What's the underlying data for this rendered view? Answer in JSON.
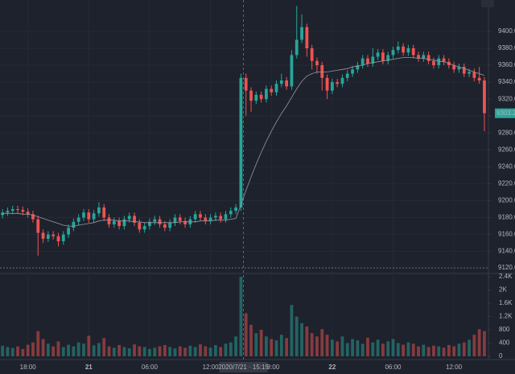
{
  "chart_data": {
    "type": "candlestick",
    "categories": [
      null,
      null,
      null,
      null,
      null,
      "18:00",
      null,
      null,
      null,
      null,
      null,
      null,
      null,
      null,
      null,
      null,
      null,
      "21",
      null,
      null,
      null,
      null,
      null,
      null,
      null,
      null,
      null,
      null,
      null,
      "06:00",
      null,
      null,
      null,
      null,
      null,
      null,
      null,
      null,
      null,
      null,
      null,
      "12:00",
      null,
      null,
      null,
      null,
      null,
      null,
      null,
      null,
      null,
      null,
      null,
      "18:00",
      null,
      null,
      null,
      null,
      null,
      null,
      null,
      null,
      null,
      null,
      null,
      "22",
      null,
      null,
      null,
      null,
      null,
      null,
      null,
      null,
      null,
      null,
      null,
      "06:00",
      null,
      null,
      null,
      null,
      null,
      null,
      null,
      null,
      null,
      null,
      null,
      "12:00",
      null,
      null,
      null,
      null,
      null,
      null
    ],
    "open": [
      9183,
      9186,
      9188,
      9190,
      9189,
      9187,
      9184,
      9178,
      9162,
      9155,
      9160,
      9158,
      9152,
      9160,
      9168,
      9175,
      9180,
      9186,
      9178,
      9185,
      9192,
      9180,
      9172,
      9176,
      9170,
      9178,
      9182,
      9174,
      9166,
      9170,
      9175,
      9178,
      9172,
      9168,
      9174,
      9180,
      9176,
      9172,
      9178,
      9184,
      9180,
      9176,
      9180,
      9182,
      9178,
      9184,
      9188,
      9192,
      9345,
      9330,
      9318,
      9325,
      9320,
      9332,
      9328,
      9338,
      9342,
      9335,
      9372,
      9390,
      9405,
      9380,
      9365,
      9360,
      9345,
      9330,
      9340,
      9338,
      9345,
      9350,
      9355,
      9360,
      9368,
      9362,
      9370,
      9375,
      9365,
      9372,
      9378,
      9382,
      9375,
      9380,
      9372,
      9368,
      9372,
      9365,
      9360,
      9368,
      9364,
      9360,
      9355,
      9358,
      9350,
      9352,
      9345,
      9342
    ],
    "high": [
      9190,
      9192,
      9194,
      9194,
      9193,
      9191,
      9188,
      9182,
      9166,
      9164,
      9164,
      9162,
      9164,
      9172,
      9179,
      9184,
      9190,
      9190,
      9189,
      9198,
      9196,
      9184,
      9180,
      9180,
      9182,
      9186,
      9186,
      9178,
      9174,
      9179,
      9182,
      9182,
      9176,
      9178,
      9184,
      9184,
      9180,
      9182,
      9188,
      9188,
      9184,
      9184,
      9186,
      9186,
      9188,
      9192,
      9196,
      9350,
      9350,
      9334,
      9329,
      9329,
      9336,
      9336,
      9342,
      9350,
      9346,
      9378,
      9430,
      9420,
      9409,
      9384,
      9369,
      9364,
      9349,
      9344,
      9344,
      9349,
      9354,
      9359,
      9364,
      9372,
      9372,
      9380,
      9379,
      9379,
      9376,
      9382,
      9388,
      9386,
      9384,
      9384,
      9376,
      9376,
      9376,
      9369,
      9372,
      9372,
      9368,
      9364,
      9362,
      9362,
      9356,
      9356,
      9358,
      9346
    ],
    "low": [
      9179,
      9182,
      9184,
      9185,
      9183,
      9180,
      9174,
      9135,
      9150,
      9151,
      9154,
      9146,
      9148,
      9156,
      9164,
      9171,
      9176,
      9174,
      9174,
      9181,
      9176,
      9168,
      9168,
      9166,
      9166,
      9174,
      9170,
      9162,
      9162,
      9166,
      9171,
      9168,
      9164,
      9164,
      9170,
      9172,
      9168,
      9168,
      9174,
      9176,
      9172,
      9172,
      9176,
      9174,
      9174,
      9180,
      9184,
      9188,
      9300,
      9305,
      9314,
      9316,
      9316,
      9324,
      9324,
      9334,
      9331,
      9331,
      9368,
      9386,
      9370,
      9355,
      9350,
      9330,
      9320,
      9326,
      9334,
      9334,
      9341,
      9346,
      9351,
      9356,
      9358,
      9358,
      9366,
      9361,
      9361,
      9368,
      9374,
      9371,
      9371,
      9368,
      9364,
      9364,
      9361,
      9356,
      9356,
      9360,
      9356,
      9351,
      9351,
      9346,
      9346,
      9341,
      9338,
      9282
    ],
    "close": [
      9186,
      9188,
      9190,
      9189,
      9187,
      9184,
      9178,
      9162,
      9155,
      9160,
      9158,
      9152,
      9160,
      9168,
      9175,
      9180,
      9186,
      9178,
      9185,
      9192,
      9180,
      9172,
      9176,
      9170,
      9178,
      9182,
      9174,
      9166,
      9170,
      9175,
      9178,
      9172,
      9168,
      9174,
      9180,
      9176,
      9172,
      9178,
      9184,
      9180,
      9176,
      9180,
      9182,
      9178,
      9184,
      9188,
      9192,
      9345,
      9330,
      9318,
      9325,
      9320,
      9332,
      9328,
      9338,
      9342,
      9335,
      9372,
      9390,
      9405,
      9380,
      9365,
      9360,
      9345,
      9330,
      9340,
      9338,
      9345,
      9350,
      9355,
      9360,
      9368,
      9362,
      9370,
      9375,
      9365,
      9372,
      9378,
      9382,
      9375,
      9380,
      9372,
      9368,
      9372,
      9365,
      9360,
      9368,
      9364,
      9360,
      9355,
      9358,
      9350,
      9352,
      9345,
      9342,
      9303.24
    ],
    "volume": [
      320,
      280,
      250,
      300,
      220,
      350,
      420,
      760,
      520,
      380,
      300,
      450,
      280,
      350,
      300,
      420,
      380,
      620,
      330,
      400,
      550,
      300,
      260,
      340,
      280,
      240,
      360,
      300,
      280,
      220,
      260,
      300,
      340,
      280,
      240,
      300,
      260,
      320,
      280,
      360,
      300,
      260,
      340,
      280,
      380,
      420,
      600,
      2400,
      1300,
      950,
      700,
      800,
      600,
      520,
      480,
      650,
      550,
      1550,
      1200,
      1000,
      900,
      700,
      600,
      820,
      650,
      500,
      450,
      600,
      400,
      520,
      480,
      380,
      560,
      420,
      500,
      380,
      450,
      520,
      400,
      350,
      420,
      380,
      300,
      350,
      280,
      320,
      300,
      260,
      340,
      300,
      380,
      420,
      500,
      650,
      820,
      760
    ],
    "ma": {
      "color": "#9598a1",
      "values": [
        9185,
        9185,
        9185,
        9185,
        9184,
        9184,
        9183,
        9181,
        9179,
        9177,
        9175,
        9173,
        9171,
        9170,
        9170,
        9171,
        9172,
        9173,
        9174,
        9176,
        9177,
        9177,
        9177,
        9176,
        9176,
        9176,
        9175,
        9175,
        9174,
        9174,
        9174,
        9174,
        9174,
        9174,
        9174,
        9175,
        9175,
        9175,
        9175,
        9176,
        9176,
        9176,
        9177,
        9177,
        9177,
        9178,
        9179,
        9195,
        9212,
        9228,
        9243,
        9257,
        9270,
        9282,
        9293,
        9303,
        9312,
        9322,
        9332,
        9341,
        9347,
        9350,
        9352,
        9352,
        9352,
        9353,
        9354,
        9355,
        9356,
        9358,
        9359,
        9360,
        9362,
        9363,
        9364,
        9365,
        9366,
        9367,
        9368,
        9369,
        9369,
        9369,
        9368,
        9368,
        9367,
        9366,
        9365,
        9364,
        9362,
        9360,
        9358,
        9356,
        9354,
        9352,
        9350,
        9348
      ]
    },
    "up_color": "#26a69a",
    "down_color": "#ef5350",
    "ylim": [
      9114,
      9437
    ],
    "yticks": [
      {
        "value": 9140,
        "label": "9140.00"
      },
      {
        "value": 9160,
        "label": "9160.00"
      },
      {
        "value": 9180,
        "label": "9180.00"
      },
      {
        "value": 9200,
        "label": "9200.00"
      },
      {
        "value": 9220,
        "label": "9220.00"
      },
      {
        "value": 9240,
        "label": "9240.00"
      },
      {
        "value": 9260,
        "label": "9260.00"
      },
      {
        "value": 9280,
        "label": "9280.00"
      },
      {
        "value": 9300,
        "label": "9300.00"
      },
      {
        "value": 9320,
        "label": "9320.00"
      },
      {
        "value": 9340,
        "label": "9340.00"
      },
      {
        "value": 9360,
        "label": "9360.00"
      },
      {
        "value": 9380,
        "label": "9380.00"
      },
      {
        "value": 9400,
        "label": "9400.00"
      }
    ],
    "volume_ylim": [
      0,
      2450
    ],
    "volume_yticks": [
      0,
      400,
      800,
      {
        "value": 1200,
        "label": "1.2K"
      },
      {
        "value": 1600,
        "label": "1.6K"
      },
      {
        "value": 2000,
        "label": "2K"
      },
      {
        "value": 2400,
        "label": "2.4K"
      }
    ],
    "price_line": 9120.61,
    "crosshair_label": "2020/7/21 · 15:15",
    "grid": true
  }
}
